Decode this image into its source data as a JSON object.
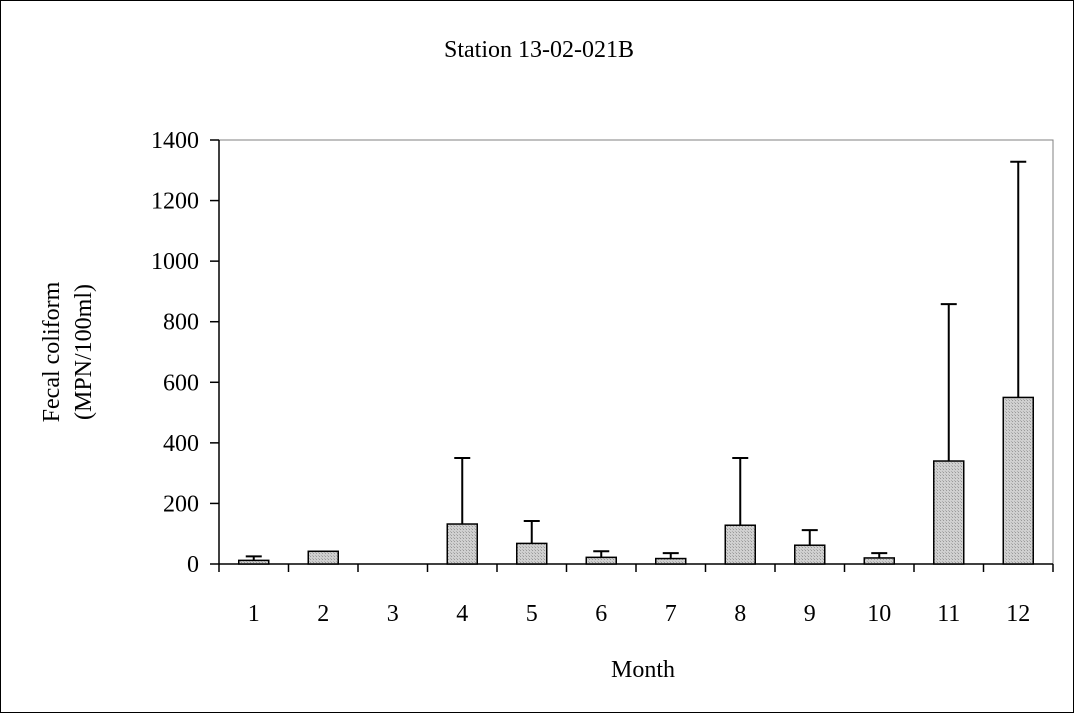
{
  "chart_data": {
    "type": "bar",
    "title": "Station 13-02-021B",
    "xlabel": "Month",
    "ylabel_lines": [
      "Fecal coliform",
      "(MPN/100ml)"
    ],
    "categories": [
      "1",
      "2",
      "3",
      "4",
      "5",
      "6",
      "7",
      "8",
      "9",
      "10",
      "11",
      "12"
    ],
    "values": [
      12,
      42,
      0,
      132,
      68,
      22,
      18,
      128,
      62,
      20,
      340,
      550
    ],
    "error_upper": [
      25,
      null,
      null,
      350,
      142,
      42,
      36,
      350,
      112,
      36,
      858,
      1328
    ],
    "ylim": [
      0,
      1400
    ],
    "yticks": [
      "0",
      "200",
      "400",
      "600",
      "800",
      "1000",
      "1200",
      "1400"
    ],
    "grid": false,
    "legend": "none",
    "colors": {
      "bar_fill": "#c8c8c8",
      "bar_stroke": "#000000",
      "axis": "#000000",
      "plot_border": "#808080"
    }
  }
}
